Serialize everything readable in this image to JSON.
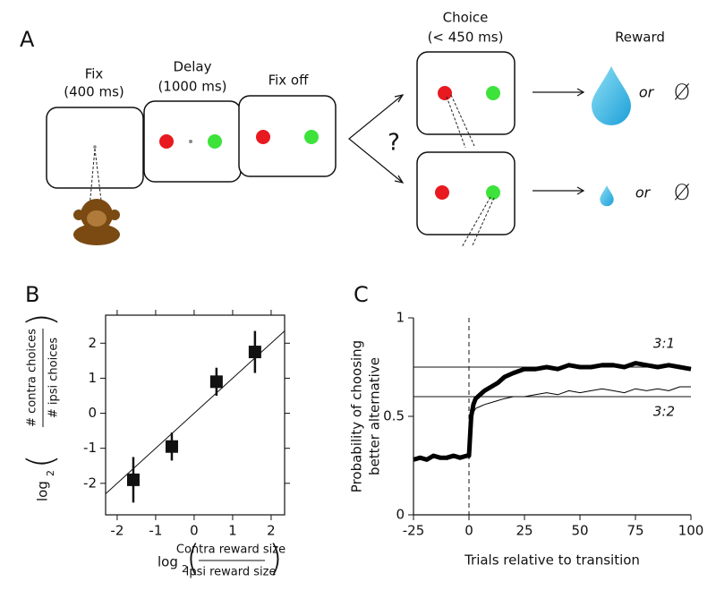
{
  "panels": [
    "A",
    "B",
    "C"
  ],
  "task": {
    "steps": [
      {
        "title": "Fix",
        "duration": "(400 ms)"
      },
      {
        "title": "Delay",
        "duration": "(1000 ms)"
      },
      {
        "title": "Fix off"
      }
    ],
    "question": "?",
    "choice": {
      "title": "Choice",
      "duration": "(< 450 ms)"
    },
    "reward": {
      "title": "Reward",
      "options": [
        {
          "or": "or",
          "none": "Ø"
        },
        {
          "or": "or",
          "none": "Ø"
        }
      ]
    }
  },
  "chart_data": [
    {
      "type": "scatter",
      "xlabel": {
        "prefix": "log",
        "base": "2",
        "numerator": "Contra reward size",
        "denominator": "Ipsi reward size"
      },
      "ylabel": {
        "prefix": "log",
        "base": "2",
        "numerator": "# contra choices",
        "denominator": "# ipsi choices"
      },
      "x": [
        -1.58,
        -0.58,
        0.58,
        1.58
      ],
      "values": [
        -1.9,
        -0.95,
        0.9,
        1.75
      ],
      "errors": [
        0.65,
        0.4,
        0.4,
        0.6
      ],
      "color": "#111111",
      "identity_line": true,
      "xlim": [
        -2.3,
        2.35
      ],
      "xticks": [
        -2,
        -1,
        0,
        1,
        2
      ],
      "ylim": [
        -2.9,
        2.8
      ],
      "yticks": [
        -2,
        -1,
        0,
        1,
        2
      ]
    },
    {
      "type": "line",
      "xlabel": "Trials relative to transition",
      "ylabel": [
        "Probability of choosing",
        "better alternative"
      ],
      "x": [
        -25,
        -22,
        -19,
        -16,
        -13,
        -10,
        -7,
        -4,
        -1,
        0,
        1,
        2,
        3,
        5,
        7,
        10,
        13,
        16,
        20,
        25,
        30,
        35,
        40,
        45,
        50,
        55,
        60,
        65,
        70,
        75,
        80,
        85,
        90,
        95,
        100
      ],
      "series": [
        {
          "name": "3:1",
          "color": "#000000",
          "linewidth": 5,
          "values": [
            0.28,
            0.29,
            0.28,
            0.3,
            0.29,
            0.29,
            0.3,
            0.29,
            0.3,
            0.3,
            0.5,
            0.56,
            0.59,
            0.61,
            0.63,
            0.65,
            0.67,
            0.7,
            0.72,
            0.74,
            0.74,
            0.75,
            0.74,
            0.76,
            0.75,
            0.75,
            0.76,
            0.76,
            0.75,
            0.77,
            0.76,
            0.75,
            0.76,
            0.75,
            0.74
          ]
        },
        {
          "name": "3:2",
          "color": "#000000",
          "linewidth": 1,
          "values": [
            0.29,
            0.28,
            0.29,
            0.29,
            0.3,
            0.28,
            0.29,
            0.3,
            0.29,
            0.3,
            0.47,
            0.52,
            0.54,
            0.55,
            0.56,
            0.57,
            0.58,
            0.59,
            0.6,
            0.6,
            0.61,
            0.62,
            0.61,
            0.63,
            0.62,
            0.63,
            0.64,
            0.63,
            0.62,
            0.64,
            0.63,
            0.64,
            0.63,
            0.65,
            0.65
          ]
        }
      ],
      "hlines": [
        0.75,
        0.6
      ],
      "vline": 0,
      "xlim": [
        -25,
        100
      ],
      "xticks": [
        -25,
        0,
        25,
        50,
        75,
        100
      ],
      "ylim": [
        0,
        1
      ],
      "yticks": [
        0,
        0.5,
        1
      ]
    }
  ]
}
